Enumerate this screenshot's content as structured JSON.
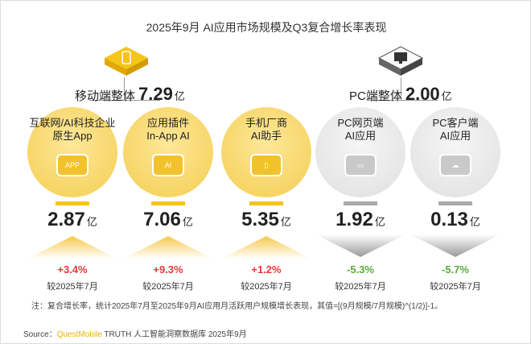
{
  "title": "2025年9月 AI应用市场规模及Q3复合增长率表现",
  "groups": {
    "mobile": {
      "label": "移动端整体",
      "value": "7.29",
      "unit": "亿",
      "icon": "mobile-phone-icon"
    },
    "pc": {
      "label": "PC端整体",
      "value": "2.00",
      "unit": "亿",
      "icon": "monitor-icon"
    }
  },
  "items": [
    {
      "line1": "互联网/AI科技企业",
      "line2": "原生App",
      "chip": "APP",
      "value": "2.87",
      "unit": "亿",
      "growth": "+3.4%",
      "compare": "较2025年7月",
      "trend": "up",
      "color": "#e8383d"
    },
    {
      "line1": "应用插件",
      "line2": "In-App AI",
      "chip": "AI",
      "value": "7.06",
      "unit": "亿",
      "growth": "+9.3%",
      "compare": "较2025年7月",
      "trend": "up",
      "color": "#e8383d"
    },
    {
      "line1": "手机厂商",
      "line2": "AI助手",
      "chip": "▯",
      "value": "5.35",
      "unit": "亿",
      "growth": "+1.2%",
      "compare": "较2025年7月",
      "trend": "up",
      "color": "#e8383d"
    },
    {
      "line1": "PC网页端",
      "line2": "AI应用",
      "chip": "▭",
      "value": "1.92",
      "unit": "亿",
      "growth": "-5.3%",
      "compare": "较2025年7月",
      "trend": "down",
      "color": "#5aab3a"
    },
    {
      "line1": "PC客户端",
      "line2": "AI应用",
      "chip": "☁",
      "value": "0.13",
      "unit": "亿",
      "growth": "-5.7%",
      "compare": "较2025年7月",
      "trend": "down",
      "color": "#5aab3a"
    }
  ],
  "note": "注：复合增长率，统计2025年7月至2025年9月AI应用月活跃用户规模增长表现，其值=[(9月规模/7月规模)^(1/2)]-1。",
  "source": {
    "prefix": "Source：",
    "brand": "QuestMobile",
    "rest": " TRUTH 人工智能洞察数据库 2025年9月"
  },
  "colors": {
    "yellow": "#f5c518",
    "gray": "#aaaaaa",
    "up": "#e8383d",
    "down": "#5aab3a"
  }
}
